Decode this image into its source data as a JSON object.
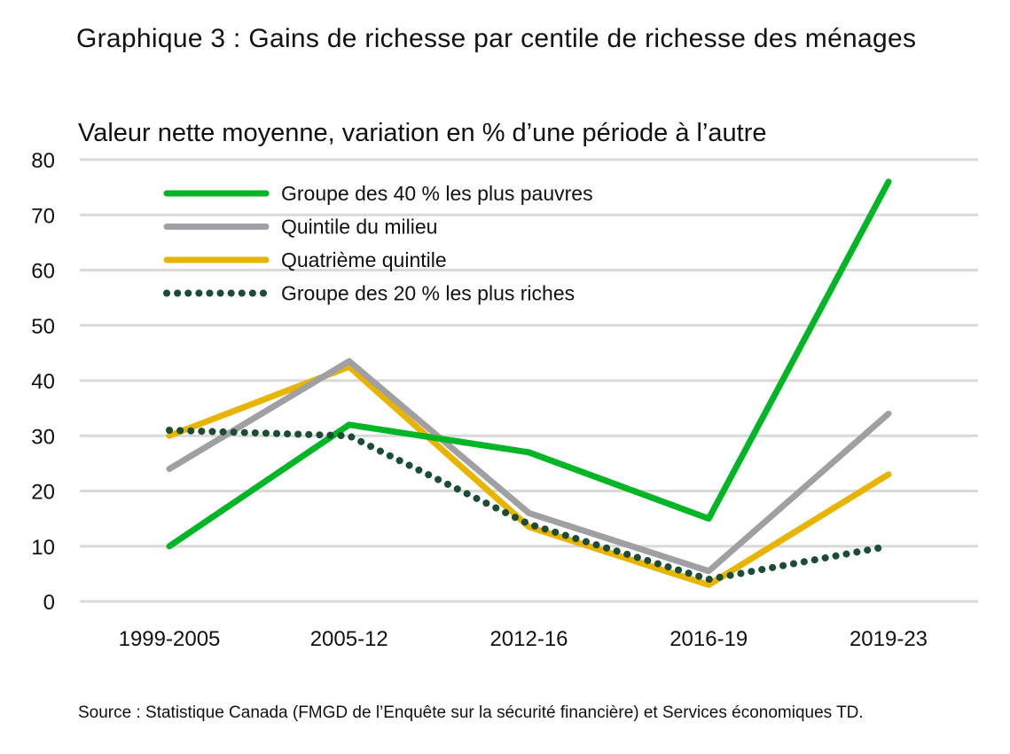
{
  "title": "Graphique 3 : Gains de richesse par centile de richesse des ménages",
  "subtitle": "Valeur nette moyenne, variation en % d’une période à l’autre",
  "source": "Source : Statistique Canada (FMGD de l’Enquête sur la sécurité financière) et Services économiques TD.",
  "chart_data": {
    "type": "line",
    "categories": [
      "1999-2005",
      "2005-12",
      "2012-16",
      "2016-19",
      "2019-23"
    ],
    "ylim": [
      0,
      80
    ],
    "yticks": [
      "0",
      "10",
      "20",
      "30",
      "40",
      "50",
      "60",
      "70",
      "80"
    ],
    "grid": true,
    "legend_position": "top-left",
    "series": [
      {
        "name": "Groupe des 40 % les plus pauvres",
        "color": "#00b624",
        "style": "solid",
        "values": [
          10,
          32,
          27,
          15,
          76
        ]
      },
      {
        "name": "Quintile du milieu",
        "color": "#a0a0a4",
        "style": "solid",
        "values": [
          24,
          43.5,
          16,
          5.5,
          34
        ]
      },
      {
        "name": "Quatrième quintile",
        "color": "#e8b400",
        "style": "solid",
        "values": [
          30,
          42.5,
          13.5,
          3,
          23
        ]
      },
      {
        "name": "Groupe des 20 % les plus riches",
        "color": "#1a4d33",
        "style": "dotted",
        "values": [
          31,
          30,
          14,
          4,
          10
        ]
      }
    ]
  }
}
